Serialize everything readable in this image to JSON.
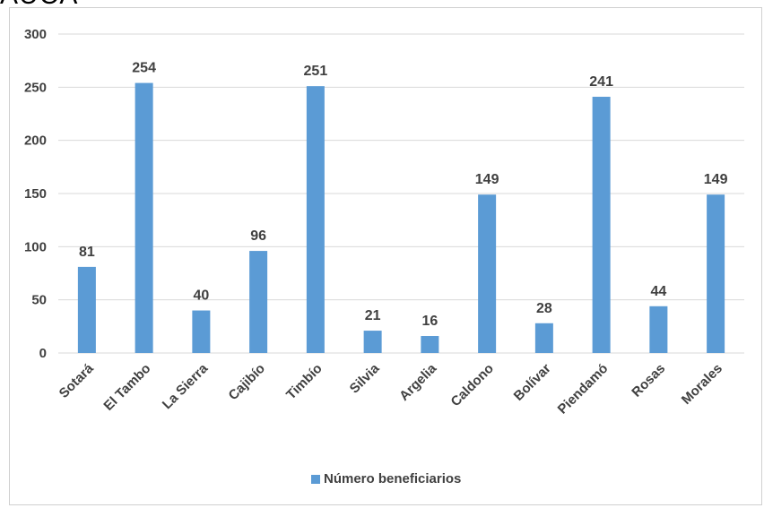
{
  "header_fragment": "AUCA",
  "colors": {
    "bar": "#5b9bd5",
    "grid": "#d9d9d9",
    "text": "#404040"
  },
  "chart_data": {
    "type": "bar",
    "categories": [
      "Sotará",
      "El Tambo",
      "La Sierra",
      "Cajibío",
      "Timbío",
      "Silvia",
      "Argelia",
      "Caldono",
      "Bolívar",
      "Piendamó",
      "Rosas",
      "Morales"
    ],
    "series": [
      {
        "name": "Número beneficiarios",
        "values": [
          81,
          254,
          40,
          96,
          251,
          21,
          16,
          149,
          28,
          241,
          44,
          149
        ]
      }
    ],
    "yticks": [
      0,
      50,
      100,
      150,
      200,
      250,
      300
    ],
    "ylim": [
      0,
      300
    ],
    "grid": true,
    "legend": "bottom",
    "data_labels": true
  }
}
